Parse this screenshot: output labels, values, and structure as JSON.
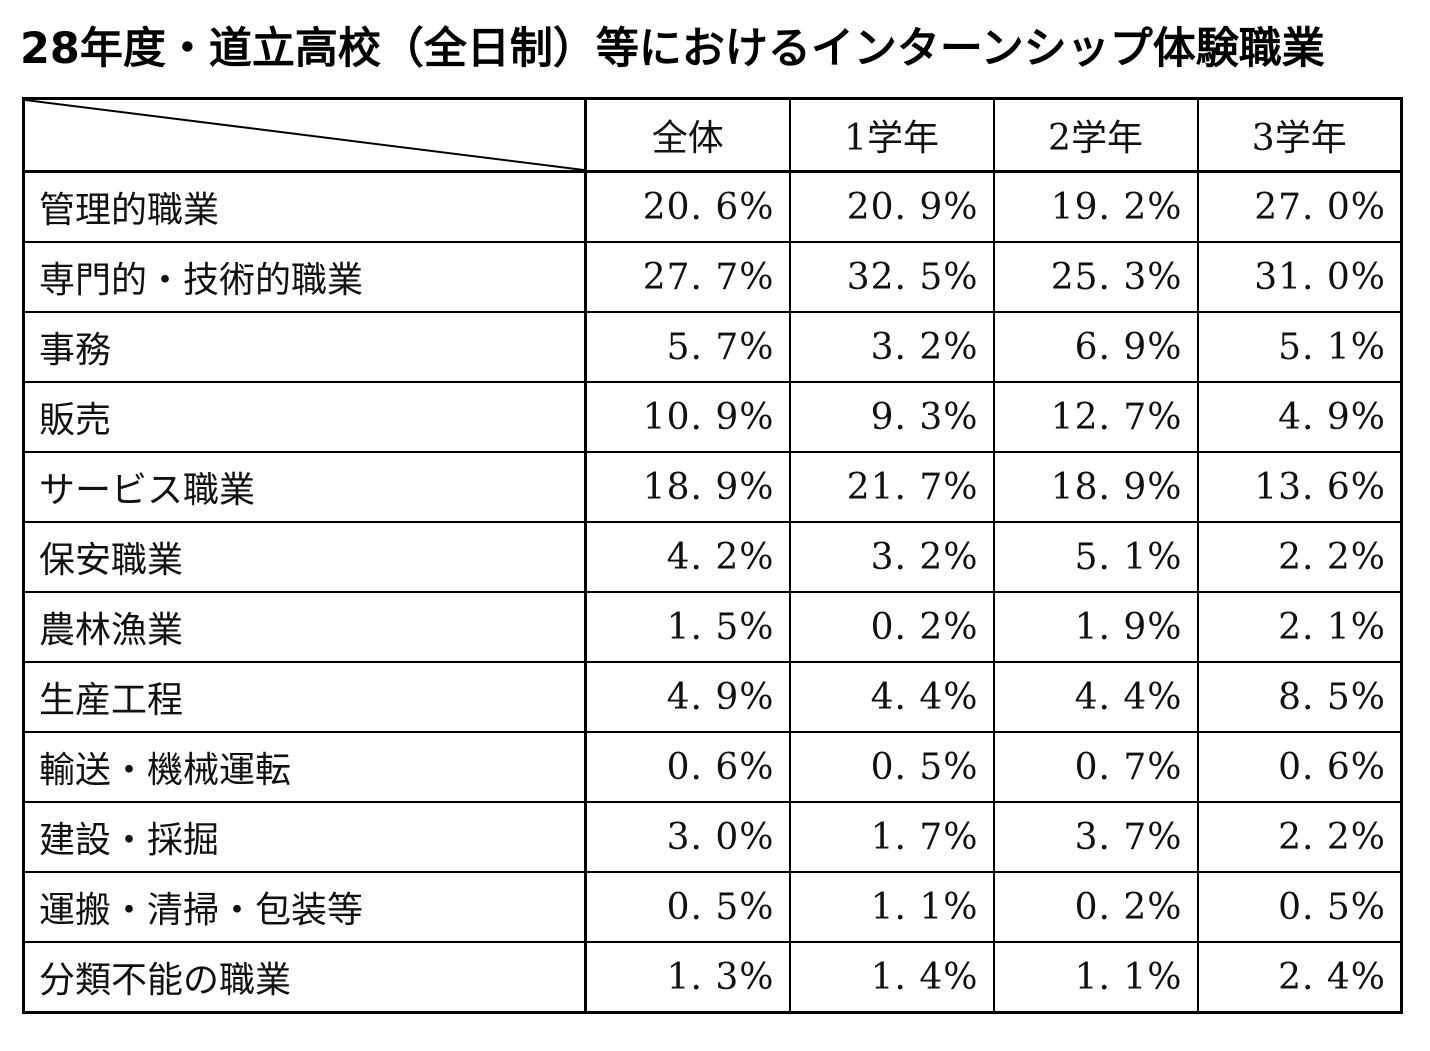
{
  "title": "28年度・道立高校（全日制）等におけるインターンシップ体験職業",
  "table": {
    "columns": [
      "全体",
      "1学年",
      "2学年",
      "3学年"
    ],
    "rows": [
      {
        "label": "管理的職業",
        "values": [
          "20. 6%",
          "20. 9%",
          "19. 2%",
          "27. 0%"
        ]
      },
      {
        "label": "専門的・技術的職業",
        "values": [
          "27. 7%",
          "32. 5%",
          "25. 3%",
          "31. 0%"
        ]
      },
      {
        "label": "事務",
        "values": [
          "5. 7%",
          "3. 2%",
          "6. 9%",
          "5. 1%"
        ]
      },
      {
        "label": "販売",
        "values": [
          "10. 9%",
          "9. 3%",
          "12. 7%",
          "4. 9%"
        ]
      },
      {
        "label": "サービス職業",
        "values": [
          "18. 9%",
          "21. 7%",
          "18. 9%",
          "13. 6%"
        ]
      },
      {
        "label": "保安職業",
        "values": [
          "4. 2%",
          "3. 2%",
          "5. 1%",
          "2. 2%"
        ]
      },
      {
        "label": "農林漁業",
        "values": [
          "1. 5%",
          "0. 2%",
          "1. 9%",
          "2. 1%"
        ]
      },
      {
        "label": "生産工程",
        "values": [
          "4. 9%",
          "4. 4%",
          "4. 4%",
          "8. 5%"
        ]
      },
      {
        "label": "輸送・機械運転",
        "values": [
          "0. 6%",
          "0. 5%",
          "0. 7%",
          "0. 6%"
        ]
      },
      {
        "label": "建設・採掘",
        "values": [
          "3. 0%",
          "1. 7%",
          "3. 7%",
          "2. 2%"
        ]
      },
      {
        "label": "運搬・清掃・包装等",
        "values": [
          "0. 5%",
          "1. 1%",
          "0. 2%",
          "0. 5%"
        ]
      },
      {
        "label": "分類不能の職業",
        "values": [
          "1. 3%",
          "1. 4%",
          "1. 1%",
          "2. 4%"
        ]
      }
    ]
  }
}
